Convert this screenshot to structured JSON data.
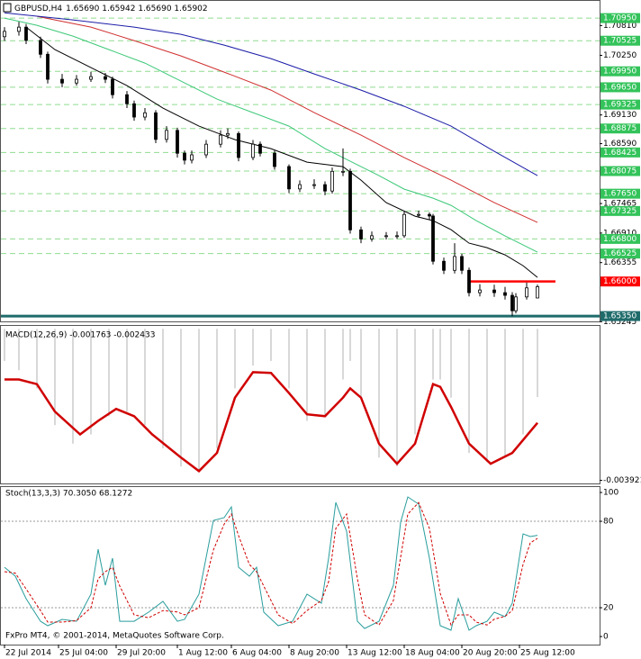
{
  "chart_data": [
    {
      "type": "candlestick",
      "title": "GBPUSD,H4",
      "subtitle": "1.65690 1.65942 1.65690 1.65902",
      "xlim": [
        -1,
        165.5
      ],
      "ylim": [
        1.6525,
        1.7129
      ],
      "yticks": [
        {
          "value": 1.7081,
          "label": "1.70810"
        },
        {
          "value": 1.7025,
          "label": "1.70250"
        },
        {
          "value": 1.6913,
          "label": "1.69130"
        },
        {
          "value": 1.6859,
          "label": "1.68590"
        },
        1.67465,
        {
          "value": 1.6691,
          "label": "1.66910"
        },
        1.66355,
        1.65245
      ],
      "x": [
        0,
        4,
        6,
        10,
        12,
        16,
        20,
        24,
        28,
        30,
        34,
        36,
        39,
        42,
        45,
        48,
        50,
        52,
        56,
        60,
        62,
        65,
        69,
        71,
        75,
        79,
        82,
        86,
        89,
        91,
        94,
        96,
        99,
        102,
        106,
        109,
        111,
        115,
        118,
        119,
        122,
        125,
        127,
        129,
        132,
        136,
        139,
        141,
        142,
        145,
        148
      ],
      "open": [
        1.706,
        1.707,
        1.7078,
        1.7053,
        1.7027,
        1.698,
        1.6973,
        1.698,
        1.6985,
        1.698,
        1.6951,
        1.6934,
        1.6909,
        1.6917,
        1.6867,
        1.6884,
        1.6841,
        1.6828,
        1.6838,
        1.6858,
        1.6875,
        1.6878,
        1.6833,
        1.6858,
        1.6841,
        1.6816,
        1.6774,
        1.6782,
        1.6782,
        1.677,
        1.6807,
        1.6807,
        1.6697,
        1.668,
        1.6686,
        1.6686,
        1.6686,
        1.6726,
        1.6726,
        1.6723,
        1.6638,
        1.6621,
        1.6647,
        1.6621,
        1.6579,
        1.6584,
        1.6579,
        1.6574,
        1.6545,
        1.6571,
        1.6569
      ],
      "high": [
        1.7078,
        1.7088,
        1.7084,
        1.706,
        1.7032,
        1.699,
        1.6988,
        1.6994,
        1.6992,
        1.6985,
        1.6958,
        1.694,
        1.6926,
        1.6922,
        1.6892,
        1.6889,
        1.6846,
        1.6846,
        1.6866,
        1.6884,
        1.6888,
        1.6882,
        1.6866,
        1.6863,
        1.6846,
        1.682,
        1.679,
        1.6792,
        1.6788,
        1.6814,
        1.685,
        1.6812,
        1.6703,
        1.6694,
        1.6693,
        1.6694,
        1.6732,
        1.6733,
        1.673,
        1.6727,
        1.6645,
        1.6672,
        1.6652,
        1.6626,
        1.6595,
        1.6594,
        1.659,
        1.658,
        1.6578,
        1.6598,
        1.65942
      ],
      "low": [
        1.7052,
        1.7062,
        1.7046,
        1.702,
        1.6972,
        1.6965,
        1.6968,
        1.6975,
        1.6973,
        1.6944,
        1.6926,
        1.6902,
        1.6903,
        1.686,
        1.6861,
        1.6833,
        1.682,
        1.6822,
        1.6832,
        1.6852,
        1.6868,
        1.6826,
        1.6828,
        1.6835,
        1.681,
        1.6766,
        1.6768,
        1.6774,
        1.6762,
        1.6765,
        1.6798,
        1.669,
        1.6672,
        1.6675,
        1.6679,
        1.668,
        1.6682,
        1.672,
        1.6716,
        1.6632,
        1.6614,
        1.6615,
        1.6614,
        1.6572,
        1.6572,
        1.6571,
        1.6566,
        1.6535,
        1.654,
        1.6566,
        1.6569
      ],
      "close": [
        1.707,
        1.7078,
        1.7053,
        1.7027,
        1.698,
        1.6973,
        1.698,
        1.6985,
        1.698,
        1.6951,
        1.6934,
        1.6909,
        1.6917,
        1.6867,
        1.6884,
        1.6841,
        1.6828,
        1.6838,
        1.6858,
        1.6875,
        1.6878,
        1.6833,
        1.6858,
        1.6841,
        1.6816,
        1.6774,
        1.6782,
        1.6782,
        1.677,
        1.6807,
        1.6807,
        1.6697,
        1.668,
        1.6686,
        1.6686,
        1.6686,
        1.6726,
        1.6726,
        1.6723,
        1.6638,
        1.6621,
        1.6647,
        1.6621,
        1.6579,
        1.6584,
        1.6579,
        1.6574,
        1.6545,
        1.6571,
        1.6588,
        1.65902
      ],
      "series": [
        {
          "color": "#000000",
          "x": [
            6,
            14,
            24,
            34,
            44,
            54,
            64,
            74,
            84,
            94,
            99,
            106,
            114,
            119,
            124,
            129,
            134,
            139,
            144,
            148
          ],
          "values": [
            1.70781,
            1.70358,
            1.7002,
            1.69681,
            1.69258,
            1.6892,
            1.68666,
            1.68497,
            1.68243,
            1.68159,
            1.67905,
            1.67482,
            1.67228,
            1.67143,
            1.66974,
            1.6672,
            1.66636,
            1.665,
            1.66297,
            1.66077
          ]
        },
        {
          "color": "#3cc878",
          "x": [
            0,
            9,
            19,
            29,
            39,
            49,
            59,
            69,
            79,
            89,
            94,
            99,
            104,
            111,
            119,
            124,
            131,
            139,
            148
          ],
          "values": [
            1.7095,
            1.70815,
            1.70612,
            1.70358,
            1.70104,
            1.69766,
            1.69427,
            1.69174,
            1.6892,
            1.68497,
            1.68328,
            1.68159,
            1.67989,
            1.67736,
            1.67567,
            1.67431,
            1.67143,
            1.66856,
            1.66551
          ]
        },
        {
          "color": "#d03030",
          "x": [
            9,
            24,
            36,
            49,
            61,
            74,
            86,
            99,
            111,
            124,
            136,
            148
          ],
          "values": [
            1.70984,
            1.70781,
            1.70527,
            1.70239,
            1.69935,
            1.69596,
            1.69174,
            1.68751,
            1.68328,
            1.67905,
            1.67482,
            1.67109
          ]
        },
        {
          "color": "#1c1ca8",
          "x": [
            0,
            19,
            36,
            49,
            61,
            74,
            86,
            99,
            111,
            124,
            136,
            148
          ],
          "values": [
            1.7105,
            1.70916,
            1.70781,
            1.70646,
            1.70442,
            1.70189,
            1.69901,
            1.69596,
            1.69292,
            1.6892,
            1.68446,
            1.67989
          ]
        }
      ],
      "levels": [
        {
          "value": 1.7095,
          "label": "1.70950",
          "color": "#33c35a",
          "style": "dashed"
        },
        {
          "value": 1.70525,
          "label": "1.70525",
          "color": "#33c35a",
          "style": "dashed"
        },
        {
          "value": 1.6995,
          "label": "1.69950",
          "color": "#33c35a",
          "style": "dashed"
        },
        {
          "value": 1.6965,
          "label": "1.69650",
          "color": "#33c35a",
          "style": "dashed"
        },
        {
          "value": 1.69325,
          "label": "1.69325",
          "color": "#33c35a",
          "style": "dashed"
        },
        {
          "value": 1.68875,
          "label": "1.68875",
          "color": "#33c35a",
          "style": "dashed"
        },
        {
          "value": 1.68425,
          "label": "1.68425",
          "color": "#33c35a",
          "style": "dashed"
        },
        {
          "value": 1.68075,
          "label": "1.68075",
          "color": "#33c35a",
          "style": "dashed"
        },
        {
          "value": 1.6765,
          "label": "1.67650",
          "color": "#33c35a",
          "style": "dashed"
        },
        {
          "value": 1.67325,
          "label": "1.67325",
          "color": "#33c35a",
          "style": "dashed"
        },
        {
          "value": 1.668,
          "label": "1.66800",
          "color": "#33c35a",
          "style": "dashed"
        },
        {
          "value": 1.66525,
          "label": "1.66525",
          "color": "#33c35a",
          "style": "dashed"
        },
        {
          "value": 1.66,
          "label": "1.66000",
          "color": "#ff0000",
          "style": "solid",
          "x": [
            129,
            153
          ]
        },
        {
          "value": 1.6535,
          "label": "1.65350",
          "color": "#1f6b6b",
          "style": "thick"
        }
      ]
    },
    {
      "type": "macd",
      "title": "MACD(12,26,9) -0.001763 -0.002433",
      "xlim": [
        -1,
        165.5
      ],
      "ylim": [
        -0.004,
        0.0001
      ],
      "yticks": [
        -0.003921
      ],
      "histogram": {
        "color": "#bdbdbd",
        "x": [
          0,
          4,
          9,
          14,
          19,
          24,
          29,
          34,
          39,
          44,
          49,
          54,
          59,
          64,
          69,
          74,
          79,
          84,
          89,
          94,
          96,
          99,
          104,
          109,
          114,
          119,
          121,
          124,
          129,
          134,
          139,
          144,
          148
        ],
        "values": [
          -0.00083,
          -0.00107,
          -0.00154,
          -0.00249,
          -0.00297,
          -0.00273,
          -0.00226,
          -0.00214,
          -0.00249,
          -0.00309,
          -0.00356,
          -0.00368,
          -0.00309,
          -0.00154,
          -0.00095,
          -0.00083,
          -0.00154,
          -0.00238,
          -0.00226,
          -0.00131,
          -0.00083,
          -0.00178,
          -0.00333,
          -0.00356,
          -0.00273,
          -0.00131,
          -0.00131,
          -0.00178,
          -0.00321,
          -0.00345,
          -0.00333,
          -0.00273,
          -0.001763
        ]
      },
      "signal": {
        "color": "#d00000",
        "x": [
          0,
          4,
          9,
          14,
          21,
          26,
          31,
          36,
          41,
          49,
          54,
          59,
          64,
          69,
          74,
          79,
          84,
          89,
          94,
          96,
          99,
          104,
          109,
          114,
          119,
          121,
          124,
          129,
          135,
          141,
          148
        ],
        "values": [
          -0.00131,
          -0.00131,
          -0.00143,
          -0.00214,
          -0.00273,
          -0.00238,
          -0.00207,
          -0.00226,
          -0.00273,
          -0.00333,
          -0.00368,
          -0.00321,
          -0.00178,
          -0.00112,
          -0.00114,
          -0.00166,
          -0.00221,
          -0.00226,
          -0.00178,
          -0.00154,
          -0.00178,
          -0.00297,
          -0.00349,
          -0.00297,
          -0.00143,
          -0.0015,
          -0.00202,
          -0.00297,
          -0.00349,
          -0.00321,
          -0.002433
        ]
      }
    },
    {
      "type": "line",
      "title": "Stoch(13,3,3) 70.3050 68.1272",
      "xlim": [
        -1,
        165.5
      ],
      "ylim": [
        -5.6,
        104.4
      ],
      "yticks": [
        100,
        80,
        20,
        0
      ],
      "levels": [
        80,
        20
      ],
      "x": [
        0,
        3,
        6,
        10,
        12,
        16,
        20,
        24,
        26,
        28,
        30,
        32,
        36,
        40,
        44,
        48,
        50,
        54,
        58,
        61,
        63,
        65,
        68,
        70,
        72,
        76,
        80,
        84,
        88,
        90,
        92,
        95,
        98,
        100,
        104,
        108,
        110,
        112,
        115,
        118,
        121,
        124,
        126,
        129,
        131,
        134,
        136,
        139,
        141,
        144,
        146,
        148
      ],
      "series": [
        {
          "color": "#2a9d9d",
          "style": "solid",
          "values": [
            48.1,
            41.9,
            26.3,
            10.6,
            7.5,
            11.9,
            10.6,
            29.4,
            60.6,
            35.6,
            54.4,
            10.6,
            10.6,
            16.9,
            24.4,
            10.6,
            11.9,
            29.4,
            80.6,
            82.5,
            90.0,
            48.1,
            41.9,
            48.1,
            16.9,
            7.5,
            10.6,
            29.4,
            23.1,
            54.4,
            93.1,
            73.1,
            10.6,
            5.6,
            10.6,
            35.6,
            79.4,
            96.9,
            91.9,
            54.4,
            7.5,
            4.4,
            26.3,
            4.4,
            7.5,
            10.6,
            16.9,
            13.8,
            23.1,
            71.3,
            69.4,
            70.305
          ]
        },
        {
          "color": "#d00000",
          "style": "dashed",
          "values": [
            45,
            44,
            33,
            18,
            10,
            10,
            11,
            20,
            40,
            45,
            48,
            35,
            15,
            13,
            18,
            17,
            15,
            20,
            60,
            78,
            85,
            70,
            50,
            45,
            35,
            15,
            9,
            18,
            25,
            38,
            75,
            85,
            40,
            15,
            8,
            25,
            55,
            85,
            93,
            75,
            30,
            8,
            15,
            15,
            10,
            8,
            12,
            14,
            18,
            50,
            65,
            68.1272
          ]
        }
      ],
      "xticks": [
        {
          "value": 0,
          "label": "22 Jul 2014"
        },
        {
          "value": 15,
          "label": "25 Jul 04:00"
        },
        {
          "value": 31,
          "label": "29 Jul 20:00"
        },
        {
          "value": 48,
          "label": "1 Aug 12:00"
        },
        {
          "value": 63,
          "label": "6 Aug 04:00"
        },
        {
          "value": 79,
          "label": "8 Aug 20:00"
        },
        {
          "value": 95,
          "label": "13 Aug 12:00"
        },
        {
          "value": 111,
          "label": "18 Aug 04:00"
        },
        {
          "value": 127,
          "label": "20 Aug 20:00"
        },
        {
          "value": 143,
          "label": "25 Aug 12:00"
        }
      ],
      "footer": "FxPro MT4, © 2001-2014, MetaQuotes Software Corp."
    }
  ]
}
